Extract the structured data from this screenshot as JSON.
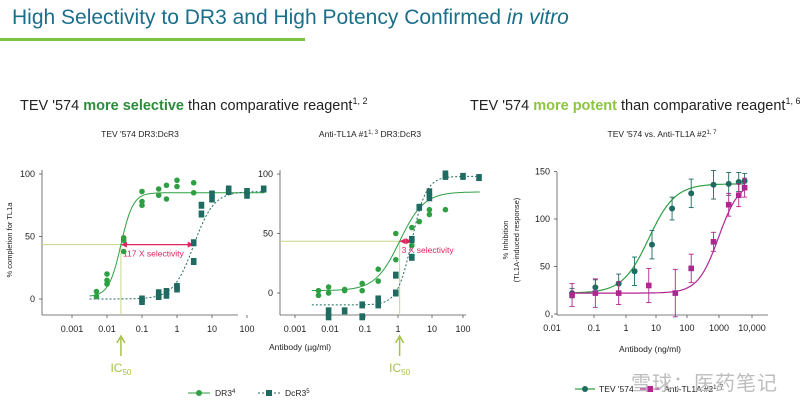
{
  "header": {
    "title_main": "High Selectivity to DR3 and High Potency Confirmed ",
    "title_italic": "in vitro"
  },
  "left_subtitle": {
    "pre": "TEV '574 ",
    "bold": "more selective",
    "post": " than comparative reagent",
    "sup": "1, 2"
  },
  "right_subtitle": {
    "pre": "TEV '574 ",
    "bold": "more potent",
    "post": " than comparative reagent",
    "sup": "1, 6"
  },
  "colors": {
    "green": "#2ea043",
    "teal": "#1f6b61",
    "magenta": "#b0268f",
    "guide": "#c6d88a",
    "arrow": "#e0245e",
    "ic50": "#a6c24a"
  },
  "chart_data": [
    {
      "type": "scatter",
      "title": "TEV '574 DR3:DcR3",
      "ylabel": "% completion for TL1a",
      "xlabel": "",
      "xscale": "log",
      "xlim": [
        0.0001,
        500
      ],
      "ylim": [
        -20,
        100
      ],
      "xticks": [
        "0.001",
        "0.01",
        "0.1",
        "1",
        "10",
        "100"
      ],
      "yticks": [
        "0",
        "50",
        "100"
      ],
      "annotation": "117 X selectivity",
      "ic50_label": "IC",
      "ic50_sub": "50",
      "series": [
        {
          "name": "DR3",
          "marker": "circle",
          "fit": {
            "bottom": 2,
            "top": 85,
            "ec50": 0.025,
            "hill": 2.5
          },
          "points": [
            [
              0.005,
              6
            ],
            [
              0.005,
              2
            ],
            [
              0.01,
              15
            ],
            [
              0.01,
              20
            ],
            [
              0.01,
              12
            ],
            [
              0.03,
              38
            ],
            [
              0.03,
              47
            ],
            [
              0.03,
              49
            ],
            [
              0.1,
              78
            ],
            [
              0.1,
              75
            ],
            [
              0.1,
              86
            ],
            [
              0.3,
              83
            ],
            [
              0.3,
              88
            ],
            [
              0.5,
              91
            ],
            [
              0.5,
              80
            ],
            [
              1,
              95
            ],
            [
              1,
              90
            ],
            [
              3,
              93
            ],
            [
              3,
              85
            ]
          ]
        },
        {
          "name": "DcR3",
          "marker": "square",
          "fit": {
            "bottom": 0,
            "top": 86,
            "ec50": 3,
            "hill": 1.5
          },
          "points": [
            [
              0.1,
              0
            ],
            [
              0.1,
              -2
            ],
            [
              0.3,
              2
            ],
            [
              0.3,
              5
            ],
            [
              0.5,
              6
            ],
            [
              0.5,
              3
            ],
            [
              1,
              10
            ],
            [
              1,
              8
            ],
            [
              3,
              30
            ],
            [
              3,
              45
            ],
            [
              5,
              68
            ],
            [
              5,
              75
            ],
            [
              10,
              84
            ],
            [
              10,
              80
            ],
            [
              30,
              86
            ],
            [
              30,
              88
            ],
            [
              100,
              86
            ],
            [
              100,
              83
            ],
            [
              300,
              88
            ]
          ]
        }
      ]
    },
    {
      "type": "scatter",
      "title": "Anti-TL1A #1",
      "title_sup": "1, 3",
      "title_post": " DR3:DcR3",
      "ylabel": "",
      "xlabel": "Antibody (µg/ml)",
      "xscale": "log",
      "xlim": [
        0.0001,
        500
      ],
      "ylim": [
        -20,
        100
      ],
      "xticks": [
        "0.001",
        "0.01",
        "0.1",
        "1",
        "10",
        "100"
      ],
      "yticks": [
        "0",
        "50",
        "100"
      ],
      "annotation": "3 X selectivity",
      "ic50_label": "IC",
      "ic50_sub": "50",
      "series": [
        {
          "name": "DR3",
          "marker": "circle",
          "fit": {
            "bottom": 2,
            "top": 85,
            "ec50": 1.3,
            "hill": 1.2
          },
          "points": [
            [
              0.005,
              2
            ],
            [
              0.005,
              -2
            ],
            [
              0.01,
              0
            ],
            [
              0.01,
              5
            ],
            [
              0.03,
              2
            ],
            [
              0.03,
              3
            ],
            [
              0.1,
              8
            ],
            [
              0.1,
              2
            ],
            [
              0.3,
              10
            ],
            [
              0.3,
              20
            ],
            [
              1,
              28
            ],
            [
              1,
              50
            ],
            [
              3,
              40
            ],
            [
              3,
              55
            ],
            [
              5,
              60
            ],
            [
              10,
              66
            ],
            [
              10,
              70
            ],
            [
              30,
              70
            ]
          ]
        },
        {
          "name": "DcR3",
          "marker": "square",
          "fit": {
            "bottom": -10,
            "top": 98,
            "ec50": 3,
            "hill": 2.0
          },
          "points": [
            [
              0.01,
              -20
            ],
            [
              0.01,
              -15
            ],
            [
              0.03,
              -15
            ],
            [
              0.1,
              -10
            ],
            [
              0.1,
              -20
            ],
            [
              0.3,
              -10
            ],
            [
              0.3,
              -5
            ],
            [
              1,
              0
            ],
            [
              1,
              15
            ],
            [
              3,
              30
            ],
            [
              3,
              45
            ],
            [
              5,
              72
            ],
            [
              10,
              80
            ],
            [
              10,
              85
            ],
            [
              30,
              98
            ],
            [
              30,
              100
            ],
            [
              100,
              98
            ],
            [
              300,
              97
            ]
          ]
        }
      ]
    },
    {
      "type": "scatter",
      "title": "TEV '574 vs. Anti-TL1A #2",
      "title_sup": "1, 7",
      "ylabel": "% Inhibition",
      "ylabel2": "(TL1A-induced response)",
      "xlabel": "Antibody (ng/ml)",
      "xscale": "log",
      "xlim": [
        0.01,
        15000
      ],
      "ylim": [
        0,
        160
      ],
      "xticks": [
        "0.01",
        "0.1",
        "1",
        "10",
        "100",
        "1000",
        "10,000"
      ],
      "yticks": [
        "0",
        "50",
        "100",
        "150"
      ],
      "series": [
        {
          "name": "TEV '574",
          "marker": "circle",
          "fit": {
            "bottom": 22,
            "top": 137,
            "ec50": 8,
            "hill": 1.1
          },
          "points": [
            [
              0.04,
              22,
              5
            ],
            [
              0.2,
              28,
              8
            ],
            [
              1,
              32,
              10
            ],
            [
              3,
              45,
              15
            ],
            [
              10,
              73,
              15
            ],
            [
              40,
              111,
              12
            ],
            [
              150,
              127,
              15
            ],
            [
              700,
              136,
              15
            ],
            [
              2000,
              137,
              12
            ],
            [
              4000,
              139,
              10
            ],
            [
              6000,
              140,
              8
            ]
          ]
        },
        {
          "name": "Anti-TL1A #2",
          "marker": "square",
          "fit": {
            "bottom": 22,
            "top": 140,
            "ec50": 1000,
            "hill": 1.4
          },
          "points": [
            [
              0.04,
              20,
              12
            ],
            [
              0.2,
              22,
              15
            ],
            [
              1,
              22,
              12
            ],
            [
              8,
              30,
              18
            ],
            [
              50,
              22,
              25
            ],
            [
              150,
              48,
              15
            ],
            [
              700,
              76,
              10
            ],
            [
              2000,
              115,
              12
            ],
            [
              4000,
              125,
              12
            ],
            [
              6000,
              133,
              10
            ]
          ]
        }
      ]
    }
  ],
  "legend_left": {
    "dr3": "DR3",
    "dr3_sup": "4",
    "dcr3": "DcR3",
    "dcr3_sup": "5"
  },
  "legend_right": {
    "a": "TEV '574",
    "b": "Anti-TL1A #2",
    "b_sup": "1, 7"
  },
  "watermark": "雪球：医药笔记"
}
